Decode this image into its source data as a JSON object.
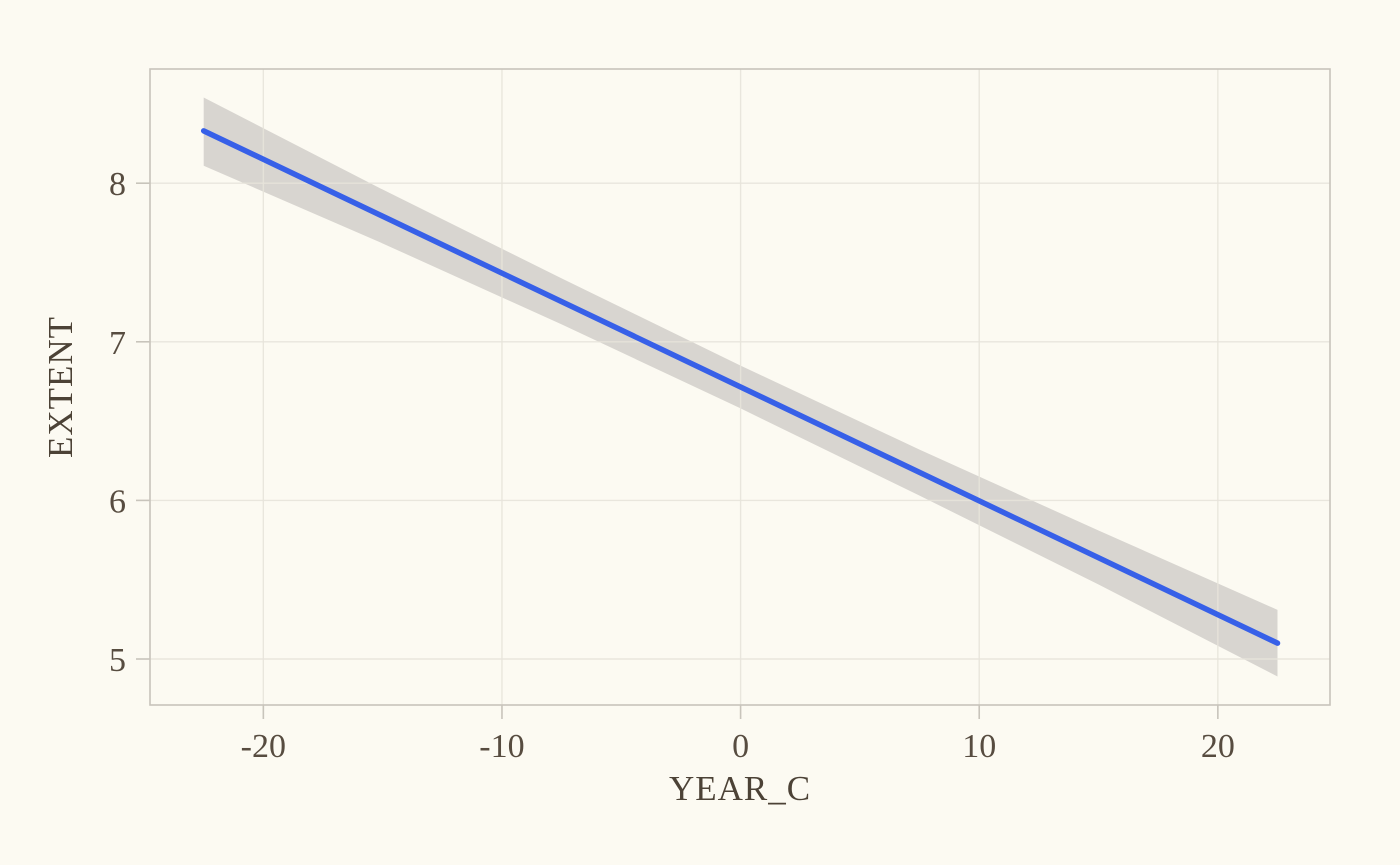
{
  "page": {
    "background": "#fcfaf2"
  },
  "chart_data": {
    "type": "line",
    "title": "",
    "xlabel": "YEAR_C",
    "ylabel": "EXTENT",
    "xlim": [
      -24.75,
      24.7
    ],
    "ylim": [
      4.71,
      8.72
    ],
    "grid": true,
    "legend_position": "none",
    "x_ticks": {
      "values": [
        -20,
        -10,
        0,
        10,
        20
      ],
      "labels": [
        "-20",
        "-10",
        "0",
        "10",
        "20"
      ]
    },
    "y_ticks": {
      "values": [
        5,
        6,
        7,
        8
      ],
      "labels": [
        "5",
        "6",
        "7",
        "8"
      ]
    },
    "series": [
      {
        "name": "linear-fit",
        "type": "line",
        "color": "#3760e8",
        "x": [
          -22.5,
          22.5
        ],
        "y": [
          8.33,
          5.1
        ]
      }
    ],
    "band": {
      "name": "confidence-interval",
      "color": "#d8d5d0",
      "points": [
        {
          "x": -22.5,
          "lo": 8.11,
          "hi": 8.54
        },
        {
          "x": -15.0,
          "lo": 7.62,
          "hi": 7.96
        },
        {
          "x": -7.5,
          "lo": 7.11,
          "hi": 7.4
        },
        {
          "x": 0.0,
          "lo": 6.58,
          "hi": 6.85
        },
        {
          "x": 7.5,
          "lo": 6.03,
          "hi": 6.32
        },
        {
          "x": 15.0,
          "lo": 5.47,
          "hi": 5.81
        },
        {
          "x": 22.5,
          "lo": 4.89,
          "hi": 5.31
        }
      ]
    },
    "colors": {
      "background": "#fcfaf2",
      "grid": "#e7e4db",
      "frame": "#c8c4bb",
      "tick": "#c8c4bb",
      "text": "#574c40",
      "line": "#3760e8",
      "band": "#d8d5d0"
    }
  }
}
